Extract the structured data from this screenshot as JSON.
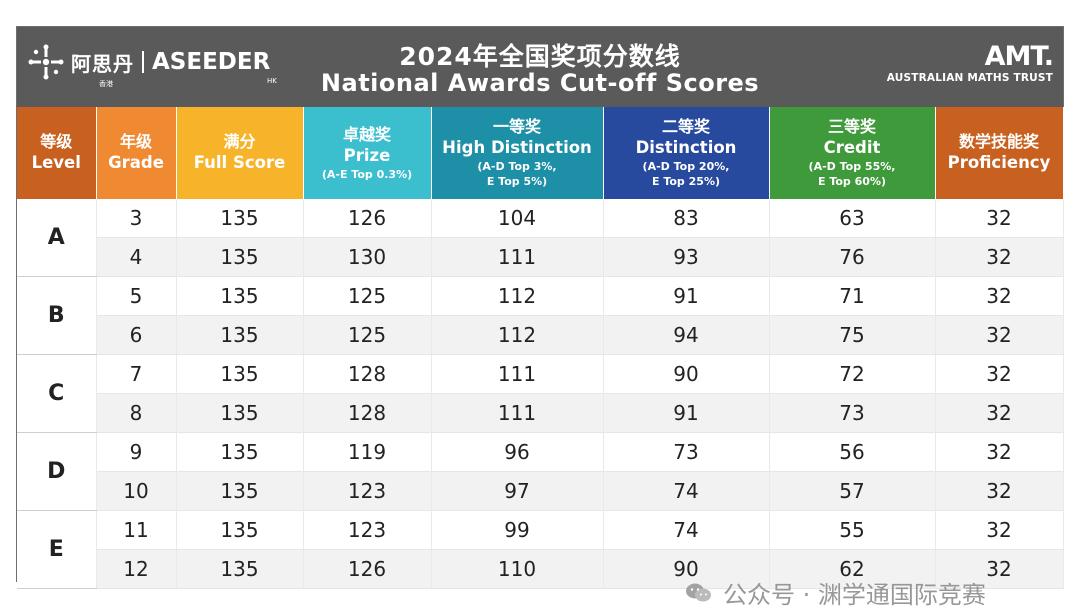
{
  "banner": {
    "logo_left_cn": "阿思丹",
    "logo_left_cn_sub": "香港",
    "logo_left_en": "ASEEDER",
    "logo_left_hk": "HK",
    "title_cn": "2024年全国奖项分数线",
    "title_en": "National Awards Cut-off Scores",
    "logo_right_mark": "AMT.",
    "logo_right_text": "AUSTRALIAN MATHS TRUST",
    "colors": {
      "banner_bg": "#5a5a5a"
    }
  },
  "table": {
    "headers": [
      {
        "cn": "等级",
        "en": "Level",
        "note": "",
        "color": "#c8601f"
      },
      {
        "cn": "年级",
        "en": "Grade",
        "note": "",
        "color": "#ef8a33"
      },
      {
        "cn": "满分",
        "en": "Full Score",
        "note": "",
        "color": "#f7b42a"
      },
      {
        "cn": "卓越奖",
        "en": "Prize",
        "note": "(A-E Top 0.3%)",
        "color": "#3bbfcf"
      },
      {
        "cn": "一等奖",
        "en": "High Distinction",
        "note": "(A-D Top 3%,\nE Top 5%)",
        "color": "#1d8fa6"
      },
      {
        "cn": "二等奖",
        "en": "Distinction",
        "note": "(A-D Top 20%,\nE Top 25%)",
        "color": "#274a9e"
      },
      {
        "cn": "三等奖",
        "en": "Credit",
        "note": "(A-D Top 55%,\nE Top 60%)",
        "color": "#3f9a3b"
      },
      {
        "cn": "数学技能奖",
        "en": "Proficiency",
        "note": "",
        "color": "#c8601f"
      }
    ],
    "groups": [
      {
        "level": "A",
        "rows": [
          [
            "3",
            "135",
            "126",
            "104",
            "83",
            "63",
            "32"
          ],
          [
            "4",
            "135",
            "130",
            "111",
            "93",
            "76",
            "32"
          ]
        ]
      },
      {
        "level": "B",
        "rows": [
          [
            "5",
            "135",
            "125",
            "112",
            "91",
            "71",
            "32"
          ],
          [
            "6",
            "135",
            "125",
            "112",
            "94",
            "75",
            "32"
          ]
        ]
      },
      {
        "level": "C",
        "rows": [
          [
            "7",
            "135",
            "128",
            "111",
            "90",
            "72",
            "32"
          ],
          [
            "8",
            "135",
            "128",
            "111",
            "91",
            "73",
            "32"
          ]
        ]
      },
      {
        "level": "D",
        "rows": [
          [
            "9",
            "135",
            "119",
            "96",
            "73",
            "56",
            "32"
          ],
          [
            "10",
            "135",
            "123",
            "97",
            "74",
            "57",
            "32"
          ]
        ]
      },
      {
        "level": "E",
        "rows": [
          [
            "11",
            "135",
            "123",
            "99",
            "74",
            "55",
            "32"
          ],
          [
            "12",
            "135",
            "126",
            "110",
            "90",
            "62",
            "32"
          ]
        ]
      }
    ]
  },
  "watermark": {
    "text": "公众号 · 渊学通国际竞赛",
    "icon": "wechat-icon"
  }
}
